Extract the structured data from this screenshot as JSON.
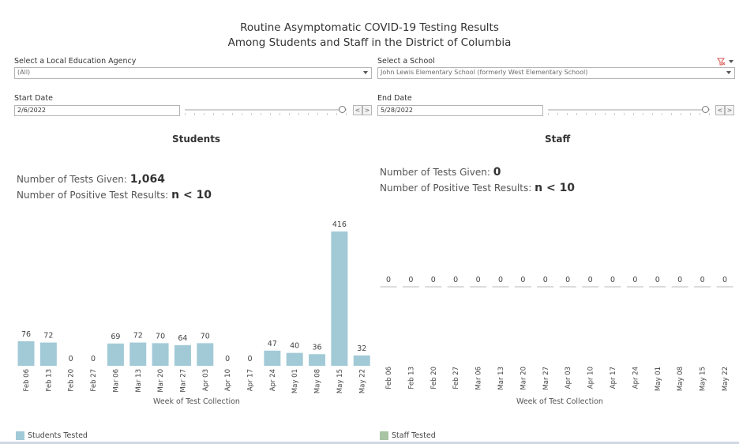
{
  "title": {
    "line1": "Routine Asymptomatic COVID-19 Testing Results",
    "line2": "Among Students and Staff in the District of Columbia"
  },
  "filters": {
    "lea_label": "Select a Local Education Agency",
    "lea_value": "(All)",
    "school_label": "Select a School",
    "school_value": "John Lewis Elementary School (formerly West Elementary School)",
    "start_label": "Start Date",
    "start_value": "2/6/2022",
    "end_label": "End Date",
    "end_value": "5/28/2022",
    "prev_symbol": "<",
    "next_symbol": ">"
  },
  "students": {
    "title": "Students",
    "tests_label": "Number of Tests Given:",
    "tests_value": "1,064",
    "positive_label": "Number of Positive Test Results:",
    "positive_value": "n < 10",
    "legend": "Students Tested"
  },
  "staff": {
    "title": "Staff",
    "tests_label": "Number of Tests Given:",
    "tests_value": "0",
    "positive_label": "Number of Positive Test Results:",
    "positive_value": "n < 10",
    "legend": "Staff Tested"
  },
  "colors": {
    "students_bar": "#a2cad6",
    "staff_bar": "#a9c4a3",
    "zero_line": "#b9b9b9",
    "filter_icon": "#d9534f"
  },
  "chart_data": [
    {
      "type": "bar",
      "title": "Students",
      "xlabel": "Week of Test Collection",
      "ylabel": "",
      "categories": [
        "Feb 06",
        "Feb 13",
        "Feb 20",
        "Feb 27",
        "Mar 06",
        "Mar 13",
        "Mar 20",
        "Mar 27",
        "Apr 03",
        "Apr 10",
        "Apr 17",
        "Apr 24",
        "May 01",
        "May 08",
        "May 15",
        "May 22"
      ],
      "values": [
        76,
        72,
        0,
        0,
        69,
        72,
        70,
        64,
        70,
        0,
        0,
        47,
        40,
        36,
        416,
        32
      ],
      "legend": [
        "Students Tested"
      ]
    },
    {
      "type": "bar",
      "title": "Staff",
      "xlabel": "Week of Test Collection",
      "ylabel": "",
      "categories": [
        "Feb 06",
        "Feb 13",
        "Feb 20",
        "Feb 27",
        "Mar 06",
        "Mar 13",
        "Mar 20",
        "Mar 27",
        "Apr 03",
        "Apr 10",
        "Apr 17",
        "Apr 24",
        "May 01",
        "May 08",
        "May 15",
        "May 22"
      ],
      "values": [
        0,
        0,
        0,
        0,
        0,
        0,
        0,
        0,
        0,
        0,
        0,
        0,
        0,
        0,
        0,
        0
      ],
      "legend": [
        "Staff Tested"
      ]
    }
  ]
}
